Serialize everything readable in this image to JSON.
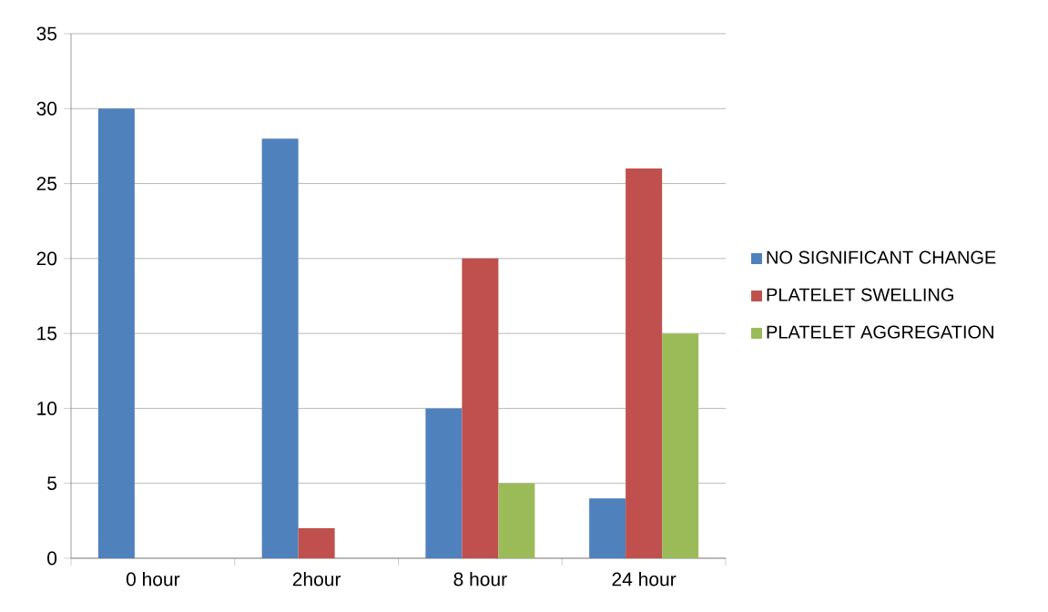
{
  "chart_data": {
    "type": "bar",
    "categories": [
      "0 hour",
      "2hour",
      "8 hour",
      "24 hour"
    ],
    "series": [
      {
        "name": "NO SIGNIFICANT CHANGE",
        "color": "#4f81bd",
        "values": [
          30,
          28,
          10,
          4
        ]
      },
      {
        "name": "PLATELET SWELLING",
        "color": "#c0504d",
        "values": [
          0,
          2,
          20,
          26
        ]
      },
      {
        "name": "PLATELET AGGREGATION",
        "color": "#9bbb59",
        "values": [
          0,
          0,
          5,
          15
        ]
      }
    ],
    "ylim": [
      0,
      35
    ],
    "yticks": [
      0,
      5,
      10,
      15,
      20,
      25,
      30,
      35
    ],
    "grid": "y",
    "legend": "right"
  }
}
